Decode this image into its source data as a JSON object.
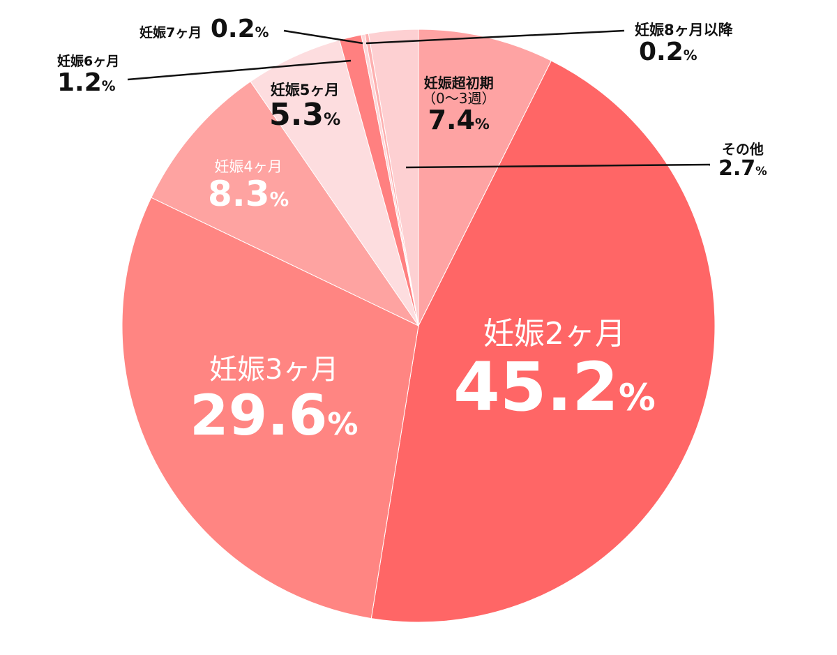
{
  "chart_data": {
    "type": "pie",
    "start": "12 o'clock",
    "direction": "clockwise",
    "slices": [
      {
        "label": "妊娠超初期（0〜3週）",
        "label_line1": "妊娠超初期",
        "label_line2": "（0〜3週）",
        "value": 7.4,
        "color": "#fea3a3"
      },
      {
        "label": "妊娠2ヶ月",
        "value": 45.2,
        "color": "#ff6666"
      },
      {
        "label": "妊娠3ヶ月",
        "value": 29.6,
        "color": "#ff8582"
      },
      {
        "label": "妊娠4ヶ月",
        "value": 8.3,
        "color": "#fea3a1"
      },
      {
        "label": "妊娠5ヶ月",
        "value": 5.3,
        "color": "#fddddf"
      },
      {
        "label": "妊娠6ヶ月",
        "value": 1.2,
        "color": "#ff8080"
      },
      {
        "label": "妊娠7ヶ月",
        "value": 0.2,
        "color": "#fdd6d8"
      },
      {
        "label": "妊娠8ヶ月以降",
        "value": 0.2,
        "color": "#fdb0b0"
      },
      {
        "label": "その他",
        "value": 2.7,
        "color": "#fdd0d2"
      }
    ],
    "value_suffix": "%"
  }
}
